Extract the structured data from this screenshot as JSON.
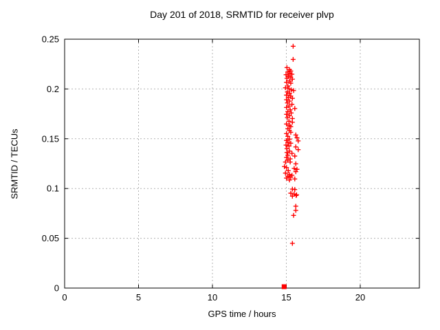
{
  "window": {
    "background": "#ffffff"
  },
  "chart_data": {
    "type": "scatter",
    "title": "Day 201 of 2018, SRMTID for receiver plvp",
    "xlabel": "GPS time / hours",
    "ylabel": "SRMTID / TECUs",
    "xlim": [
      0,
      24
    ],
    "ylim": [
      0,
      0.25
    ],
    "xticks": [
      0,
      5,
      10,
      15,
      20
    ],
    "xtick_labels": [
      "0",
      "5",
      "10",
      "15",
      "20"
    ],
    "yticks": [
      0,
      0.05,
      0.1,
      0.15,
      0.2,
      0.25
    ],
    "ytick_labels": [
      "0",
      "0.05",
      "0.1",
      "0.15",
      "0.2",
      "0.25"
    ],
    "grid": true,
    "grid_style": "dashed",
    "grid_color": "#b0b0b0",
    "axis_color": "#000000",
    "legend": "none",
    "series": [
      {
        "name": "SRMTID",
        "marker": "plus",
        "color": "#ff0000",
        "points": [
          [
            15.46,
            0.2429
          ],
          [
            15.46,
            0.2297
          ],
          [
            15.04,
            0.2215
          ],
          [
            15.21,
            0.2194
          ],
          [
            15.3,
            0.218
          ],
          [
            15.1,
            0.2171
          ],
          [
            15.21,
            0.2155
          ],
          [
            15.38,
            0.2148
          ],
          [
            14.98,
            0.2143
          ],
          [
            15.13,
            0.2129
          ],
          [
            15.3,
            0.2118
          ],
          [
            15.04,
            0.2107
          ],
          [
            15.41,
            0.2098
          ],
          [
            15.21,
            0.2081
          ],
          [
            15.01,
            0.2067
          ],
          [
            15.3,
            0.2058
          ],
          [
            15.1,
            0.203
          ],
          [
            14.94,
            0.2012
          ],
          [
            15.18,
            0.2003
          ],
          [
            15.33,
            0.1991
          ],
          [
            15.49,
            0.1984
          ],
          [
            15.07,
            0.197
          ],
          [
            15.22,
            0.1956
          ],
          [
            15.01,
            0.1938
          ],
          [
            15.3,
            0.1929
          ],
          [
            15.13,
            0.1915
          ],
          [
            15.41,
            0.1906
          ],
          [
            15.01,
            0.1892
          ],
          [
            15.21,
            0.1878
          ],
          [
            15.07,
            0.186
          ],
          [
            15.38,
            0.1846
          ],
          [
            15.18,
            0.1828
          ],
          [
            15.01,
            0.1814
          ],
          [
            15.57,
            0.1804
          ],
          [
            15.26,
            0.1791
          ],
          [
            15.1,
            0.1773
          ],
          [
            15.33,
            0.1759
          ],
          [
            15.01,
            0.1745
          ],
          [
            15.21,
            0.1731
          ],
          [
            15.07,
            0.1712
          ],
          [
            15.41,
            0.1703
          ],
          [
            15.18,
            0.1676
          ],
          [
            15.41,
            0.1666
          ],
          [
            15.01,
            0.1648
          ],
          [
            15.21,
            0.1634
          ],
          [
            15.3,
            0.1621
          ],
          [
            15.1,
            0.1602
          ],
          [
            15.21,
            0.1583
          ],
          [
            15.3,
            0.1565
          ],
          [
            15.01,
            0.1552
          ],
          [
            15.64,
            0.1538
          ],
          [
            15.1,
            0.1524
          ],
          [
            15.72,
            0.151
          ],
          [
            15.21,
            0.1496
          ],
          [
            15.01,
            0.1483
          ],
          [
            15.8,
            0.1478
          ],
          [
            15.1,
            0.1464
          ],
          [
            15.3,
            0.1455
          ],
          [
            14.98,
            0.1436
          ],
          [
            15.18,
            0.1427
          ],
          [
            15.64,
            0.1418
          ],
          [
            15.04,
            0.14
          ],
          [
            15.8,
            0.139
          ],
          [
            15.21,
            0.1376
          ],
          [
            15.04,
            0.1362
          ],
          [
            15.38,
            0.1353
          ],
          [
            15.1,
            0.1335
          ],
          [
            15.57,
            0.1326
          ],
          [
            15.01,
            0.1312
          ],
          [
            15.26,
            0.1298
          ],
          [
            15.1,
            0.1284
          ],
          [
            14.94,
            0.1266
          ],
          [
            15.26,
            0.1266
          ],
          [
            15.64,
            0.1248
          ],
          [
            14.87,
            0.122
          ],
          [
            15.01,
            0.1211
          ],
          [
            15.53,
            0.1202
          ],
          [
            15.72,
            0.1193
          ],
          [
            15.13,
            0.1179
          ],
          [
            15.64,
            0.1169
          ],
          [
            14.94,
            0.1155
          ],
          [
            15.21,
            0.1141
          ],
          [
            15.38,
            0.1133
          ],
          [
            15.1,
            0.1124
          ],
          [
            15.3,
            0.1114
          ],
          [
            15.01,
            0.1105
          ],
          [
            15.57,
            0.1096
          ],
          [
            15.21,
            0.1086
          ],
          [
            15.41,
            0.0994
          ],
          [
            15.57,
            0.099
          ],
          [
            15.3,
            0.0953
          ],
          [
            15.53,
            0.0944
          ],
          [
            15.69,
            0.0937
          ],
          [
            15.66,
            0.093
          ],
          [
            15.41,
            0.0923
          ],
          [
            15.64,
            0.0822
          ],
          [
            15.64,
            0.078
          ],
          [
            15.49,
            0.073
          ],
          [
            15.41,
            0.0449
          ]
        ]
      },
      {
        "name": "zero baseline marker",
        "marker": "filled-square",
        "color": "#ff0000",
        "points": [
          [
            14.85,
            0
          ]
        ]
      }
    ]
  }
}
